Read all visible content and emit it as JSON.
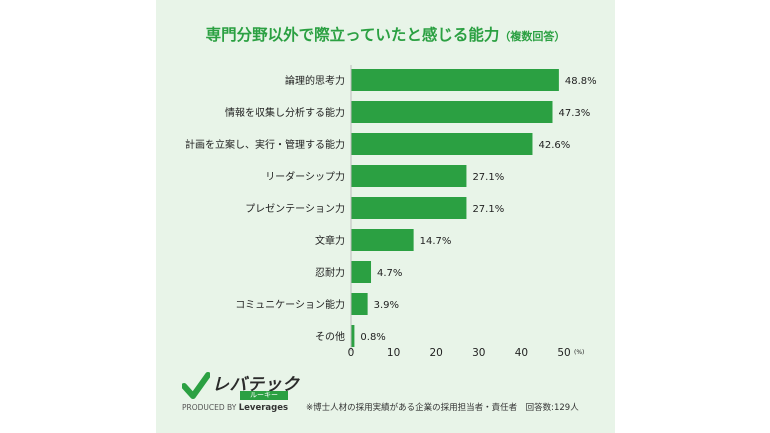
{
  "title_main": "専門分野以外で際立っていたと感じる能力",
  "title_sub": "（複数回答）",
  "chart_data": {
    "type": "bar",
    "orientation": "horizontal",
    "categories": [
      "論理的思考力",
      "情報を収集し分析する能力",
      "計画を立案し、実行・管理する能力",
      "リーダーシップ力",
      "プレゼンテーション力",
      "文章力",
      "忍耐力",
      "コミュニケーション能力",
      "その他"
    ],
    "values": [
      48.8,
      47.3,
      42.6,
      27.1,
      27.1,
      14.7,
      4.7,
      3.9,
      0.8
    ],
    "value_labels": [
      "48.8%",
      "47.3%",
      "42.6%",
      "27.1%",
      "27.1%",
      "14.7%",
      "4.7%",
      "3.9%",
      "0.8%"
    ],
    "xlim": [
      0,
      50
    ],
    "xticks": [
      "0",
      "10",
      "20",
      "30",
      "40",
      "50"
    ],
    "xunit": "(%)",
    "bar_color": "#2ba042",
    "grid": false
  },
  "logo": {
    "word": "レバテック",
    "sub": "ルーキー",
    "produced_by": "PRODUCED BY",
    "brand": "Leverages"
  },
  "footnote": "※博士人材の採用実績がある企業の採用担当者・責任者　回答数:129人"
}
